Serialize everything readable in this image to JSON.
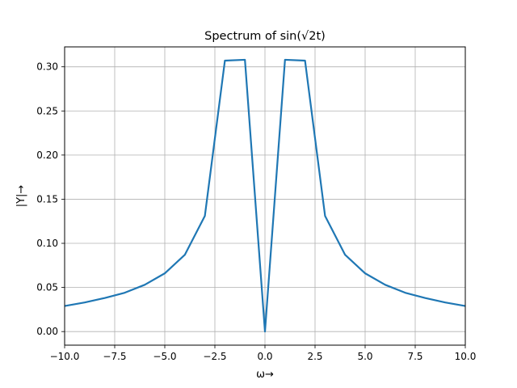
{
  "chart_data": {
    "type": "line",
    "title": "Spectrum of sin(√2t)",
    "xlabel": "ω→",
    "ylabel": "|Y|→",
    "xlim": [
      -10,
      10
    ],
    "ylim": [
      -0.0154,
      0.3226
    ],
    "grid": true,
    "xticks": [
      "−10.0",
      "−7.5",
      "−5.0",
      "−2.5",
      "0.0",
      "2.5",
      "5.0",
      "7.5",
      "10.0"
    ],
    "yticks": [
      "0.00",
      "0.05",
      "0.10",
      "0.15",
      "0.20",
      "0.25",
      "0.30"
    ],
    "series": [
      {
        "color": "#1f77b4",
        "x": [
          -10,
          -9,
          -8,
          -7,
          -6,
          -5,
          -4,
          -3,
          -2,
          -1,
          0,
          1,
          2,
          3,
          4,
          5,
          6,
          7,
          8,
          9,
          10
        ],
        "y": [
          0.029,
          0.033,
          0.038,
          0.044,
          0.053,
          0.066,
          0.087,
          0.131,
          0.307,
          0.308,
          0.0,
          0.308,
          0.307,
          0.131,
          0.087,
          0.066,
          0.053,
          0.044,
          0.038,
          0.033,
          0.029
        ]
      }
    ]
  }
}
